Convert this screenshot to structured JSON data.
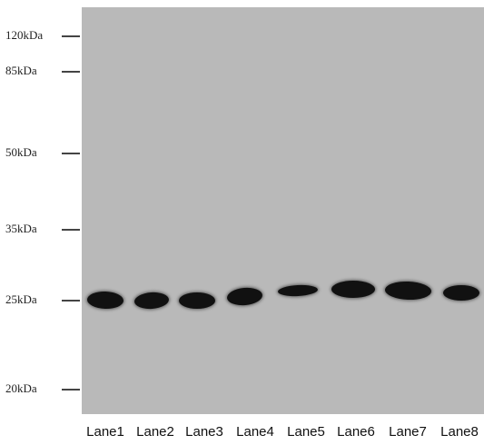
{
  "markers": [
    {
      "label": "120kDa"
    },
    {
      "label": "85kDa"
    },
    {
      "label": "50kDa"
    },
    {
      "label": "35kDa"
    },
    {
      "label": "25kDa"
    },
    {
      "label": "20kDa"
    }
  ],
  "lanes": [
    {
      "label": "Lane1"
    },
    {
      "label": "Lane2"
    },
    {
      "label": "Lane3"
    },
    {
      "label": "Lane4"
    },
    {
      "label": "Lane5"
    },
    {
      "label": "Lane6"
    },
    {
      "label": "Lane7"
    },
    {
      "label": "Lane8"
    }
  ],
  "colors": {
    "membrane": "#b9b9b9",
    "band": "#111111",
    "background": "#ffffff"
  }
}
